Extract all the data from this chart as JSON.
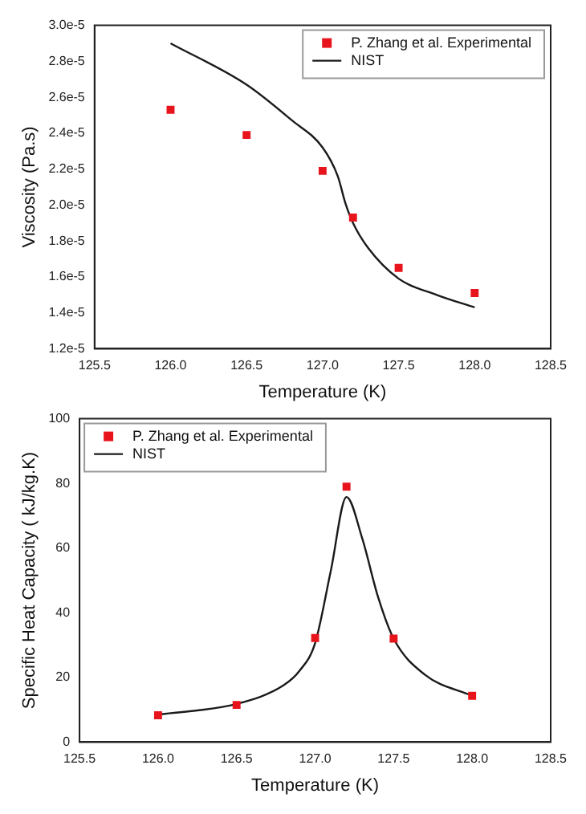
{
  "chart_data": [
    {
      "type": "scatter",
      "xlabel": "Temperature (K)",
      "ylabel": "Viscosity (Pa.s)",
      "xlim": [
        125.5,
        128.5
      ],
      "xticks": [
        {
          "value": 125.5,
          "label": "125.5"
        },
        {
          "value": 126,
          "label": "126.0"
        },
        {
          "value": 126.5,
          "label": "126.5"
        },
        {
          "value": 127,
          "label": "127.0"
        },
        {
          "value": 127.5,
          "label": "127.5"
        },
        {
          "value": 128,
          "label": "128.0"
        },
        {
          "value": 128.5,
          "label": "128.5"
        }
      ],
      "ylim": [
        1.2e-05,
        3e-05
      ],
      "yticks": [
        {
          "value": 1.2e-05,
          "label": "1.2e-5"
        },
        {
          "value": 1.4e-05,
          "label": "1.4e-5"
        },
        {
          "value": 1.6e-05,
          "label": "1.6e-5"
        },
        {
          "value": 1.8e-05,
          "label": "1.8e-5"
        },
        {
          "value": 2e-05,
          "label": "2.0e-5"
        },
        {
          "value": 2.2e-05,
          "label": "2.2e-5"
        },
        {
          "value": 2.4e-05,
          "label": "2.4e-5"
        },
        {
          "value": 2.6e-05,
          "label": "2.6e-5"
        },
        {
          "value": 2.8e-05,
          "label": "2.8e-5"
        },
        {
          "value": 3e-05,
          "label": "3.0e-5"
        }
      ],
      "grid": false,
      "legend": "top right",
      "series": [
        {
          "name": "P. Zhang et al. Experimental",
          "type": "scatter",
          "marker": "square",
          "color": "#e8141c",
          "x": [
            126,
            126.5,
            127,
            127.2,
            127.5,
            128
          ],
          "values": [
            2.53e-05,
            2.39e-05,
            2.19e-05,
            1.93e-05,
            1.65e-05,
            1.51e-05
          ]
        },
        {
          "name": "NIST",
          "type": "line",
          "marker": "none",
          "line_style": "solid",
          "color": "#1a1a1a",
          "x": [
            126,
            126.5,
            126.8,
            127,
            127.1,
            127.15,
            127.2,
            127.3,
            127.5,
            127.75,
            128
          ],
          "values": [
            2.9e-05,
            2.67e-05,
            2.47e-05,
            2.32e-05,
            2.16e-05,
            2.01e-05,
            1.9e-05,
            1.76e-05,
            1.59e-05,
            1.5e-05,
            1.43e-05
          ]
        }
      ]
    },
    {
      "type": "scatter",
      "xlabel": "Temperature (K)",
      "ylabel": "Specific Heat Capacity ( kJ/kg.K)",
      "xlim": [
        125.5,
        128.5
      ],
      "xticks": [
        {
          "value": 125.5,
          "label": "125.5"
        },
        {
          "value": 126,
          "label": "126.0"
        },
        {
          "value": 126.5,
          "label": "126.5"
        },
        {
          "value": 127,
          "label": "127.0"
        },
        {
          "value": 127.5,
          "label": "127.5"
        },
        {
          "value": 128,
          "label": "128.0"
        },
        {
          "value": 128.5,
          "label": "128.5"
        }
      ],
      "ylim": [
        0,
        100
      ],
      "yticks": [
        0,
        20,
        40,
        60,
        80,
        100
      ],
      "grid": false,
      "legend": "top left",
      "series": [
        {
          "name": "P. Zhang et al. Experimental",
          "type": "scatter",
          "marker": "square",
          "color": "#e8141c",
          "x": [
            126,
            126.5,
            127,
            127.2,
            127.5,
            128
          ],
          "values": [
            8.3,
            11.5,
            32.2,
            79,
            32,
            14.3
          ]
        },
        {
          "name": "NIST",
          "type": "line",
          "marker": "none",
          "line_style": "solid",
          "color": "#1a1a1a",
          "x": [
            126,
            126.5,
            126.8,
            126.9,
            127,
            127.1,
            127.2,
            127.3,
            127.4,
            127.5,
            127.7,
            128
          ],
          "values": [
            8.5,
            11.8,
            17.6,
            22,
            30.6,
            53,
            75.8,
            63,
            45,
            32,
            20.8,
            14.3
          ]
        }
      ]
    }
  ]
}
